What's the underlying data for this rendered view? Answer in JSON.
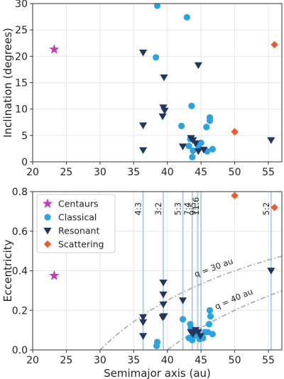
{
  "colors": {
    "centaurs": "#c13cbe",
    "classical": "#2aa3e2",
    "resonant": "#22375e",
    "scattering": "#ef5a2e",
    "resonance_line": "#b9d3e3",
    "q_curve": "#a9a9a9",
    "grid": "#e6e6e6"
  },
  "chart_data": [
    {
      "type": "scatter",
      "xlabel": "",
      "ylabel": "Inclination (degrees)",
      "xlim": [
        20,
        57
      ],
      "ylim": [
        0,
        30
      ],
      "xticks": [
        20,
        25,
        30,
        35,
        40,
        45,
        50,
        55
      ],
      "yticks": [
        0,
        5,
        10,
        15,
        20,
        25,
        30
      ],
      "grid": true,
      "series": [
        {
          "name": "Centaurs",
          "marker": "star",
          "points": [
            [
              23.2,
              21.3
            ]
          ]
        },
        {
          "name": "Classical",
          "marker": "circle",
          "points": [
            [
              38.5,
              29.6
            ],
            [
              42.9,
              27.4
            ],
            [
              38.3,
              19.8
            ],
            [
              43.6,
              10.6
            ],
            [
              46.3,
              8.4
            ],
            [
              46.3,
              7.8
            ],
            [
              42.1,
              6.8
            ],
            [
              45.8,
              6.6
            ],
            [
              43.4,
              4.3
            ],
            [
              45.0,
              3.6
            ],
            [
              43.2,
              3.0
            ],
            [
              44.7,
              2.5
            ],
            [
              43.8,
              2.1
            ],
            [
              46.7,
              2.4
            ],
            [
              45.9,
              2.0
            ],
            [
              43.7,
              0.9
            ],
            [
              44.5,
              3.2
            ]
          ]
        },
        {
          "name": "Resonant",
          "marker": "triangle",
          "points": [
            [
              36.4,
              20.7
            ],
            [
              39.5,
              16.0
            ],
            [
              44.6,
              18.3
            ],
            [
              39.4,
              10.3
            ],
            [
              39.6,
              9.7
            ],
            [
              39.3,
              8.6
            ],
            [
              36.4,
              6.9
            ],
            [
              43.5,
              4.5
            ],
            [
              43.8,
              4.1
            ],
            [
              44.2,
              3.5
            ],
            [
              42.3,
              2.9
            ],
            [
              45.4,
              2.3
            ],
            [
              44.6,
              2.0
            ],
            [
              36.4,
              2.2
            ],
            [
              55.4,
              4.1
            ]
          ]
        },
        {
          "name": "Scattering",
          "marker": "diamond",
          "points": [
            [
              55.9,
              22.2
            ],
            [
              50.0,
              5.7
            ]
          ]
        }
      ]
    },
    {
      "type": "scatter",
      "xlabel": "Semimajor axis (au)",
      "ylabel": "Eccentricity",
      "xlim": [
        20,
        57
      ],
      "ylim": [
        0,
        0.8
      ],
      "xticks": [
        20,
        25,
        30,
        35,
        40,
        45,
        50,
        55
      ],
      "yticks": [
        0.0,
        0.2,
        0.4,
        0.6,
        0.8
      ],
      "grid": true,
      "legend": {
        "position": "top-left",
        "entries": [
          "Centaurs",
          "Classical",
          "Resonant",
          "Scattering"
        ]
      },
      "resonances": [
        {
          "label": "4:3",
          "a": 36.4
        },
        {
          "label": "3:2",
          "a": 39.4
        },
        {
          "label": "5:3",
          "a": 42.3
        },
        {
          "label": "7:4",
          "a": 43.7
        },
        {
          "label": "9:5",
          "a": 44.5
        },
        {
          "label": "11:6",
          "a": 45.0
        },
        {
          "label": "5:2",
          "a": 55.4
        }
      ],
      "perihelion_curves": [
        {
          "label": "q = 30 au",
          "q": 30
        },
        {
          "label": "q = 40 au",
          "q": 40
        }
      ],
      "series": [
        {
          "name": "Centaurs",
          "marker": "star",
          "points": [
            [
              23.2,
              0.375
            ]
          ]
        },
        {
          "name": "Classical",
          "marker": "circle",
          "points": [
            [
              42.3,
              0.155
            ],
            [
              43.4,
              0.13
            ],
            [
              43.5,
              0.11
            ],
            [
              44.0,
              0.09
            ],
            [
              44.6,
              0.07
            ],
            [
              43.9,
              0.07
            ],
            [
              43.2,
              0.06
            ],
            [
              43.7,
              0.05
            ],
            [
              44.8,
              0.055
            ],
            [
              45.3,
              0.06
            ],
            [
              46.0,
              0.09
            ],
            [
              46.2,
              0.13
            ],
            [
              46.4,
              0.17
            ],
            [
              46.3,
              0.2
            ],
            [
              46.7,
              0.08
            ],
            [
              38.5,
              0.04
            ],
            [
              38.4,
              0.02
            ],
            [
              45.6,
              0.09
            ]
          ]
        },
        {
          "name": "Resonant",
          "marker": "triangle",
          "points": [
            [
              36.4,
              0.165
            ],
            [
              36.4,
              0.14
            ],
            [
              36.4,
              0.07
            ],
            [
              39.4,
              0.34
            ],
            [
              39.4,
              0.28
            ],
            [
              39.4,
              0.23
            ],
            [
              39.5,
              0.17
            ],
            [
              39.3,
              0.165
            ],
            [
              42.3,
              0.25
            ],
            [
              43.5,
              0.09
            ],
            [
              43.8,
              0.08
            ],
            [
              44.2,
              0.1
            ],
            [
              44.6,
              0.09
            ],
            [
              44.9,
              0.07
            ],
            [
              55.4,
              0.4
            ]
          ]
        },
        {
          "name": "Scattering",
          "marker": "diamond",
          "points": [
            [
              50.0,
              0.78
            ],
            [
              55.9,
              0.72
            ]
          ]
        }
      ]
    }
  ]
}
